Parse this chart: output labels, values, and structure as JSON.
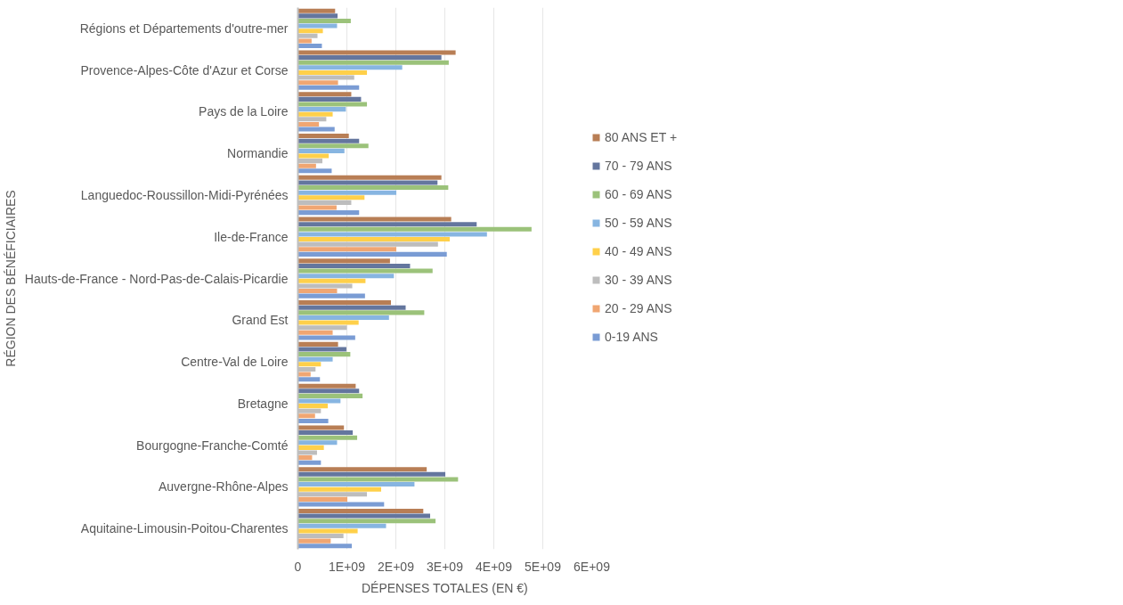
{
  "chart_data": {
    "type": "bar",
    "orientation": "horizontal",
    "xlabel": "DÉPENSES TOTALES (EN €)",
    "ylabel": "RÉGION DES BÉNÉFICIAIRES",
    "categories": [
      "Régions et Départements d'outre-mer",
      "Provence-Alpes-Côte d'Azur et Corse",
      "Pays de la Loire",
      "Normandie",
      "Languedoc-Roussillon-Midi-Pyrénées",
      "Ile-de-France",
      "Hauts-de-France - Nord-Pas-de-Calais-Picardie",
      "Grand Est",
      "Centre-Val de Loire",
      "Bretagne",
      "Bourgogne-Franche-Comté",
      "Auvergne-Rhône-Alpes",
      "Aquitaine-Limousin-Poitou-Charentes"
    ],
    "series": [
      {
        "name": "80 ANS ET +",
        "color": "#b87e55",
        "values": [
          760000000,
          3220000000,
          1090000000,
          1040000000,
          2930000000,
          3130000000,
          1880000000,
          1900000000,
          820000000,
          1180000000,
          940000000,
          2630000000,
          2560000000
        ]
      },
      {
        "name": "70 - 79 ANS",
        "color": "#64769e",
        "values": [
          810000000,
          2930000000,
          1290000000,
          1250000000,
          2850000000,
          3650000000,
          2290000000,
          2200000000,
          990000000,
          1250000000,
          1120000000,
          3010000000,
          2700000000
        ]
      },
      {
        "name": "60 - 69 ANS",
        "color": "#9bc27a",
        "values": [
          1080000000,
          3080000000,
          1410000000,
          1440000000,
          3070000000,
          4770000000,
          2750000000,
          2580000000,
          1070000000,
          1320000000,
          1210000000,
          3270000000,
          2810000000
        ]
      },
      {
        "name": "50 - 59 ANS",
        "color": "#87b5e1",
        "values": [
          800000000,
          2130000000,
          980000000,
          950000000,
          2010000000,
          3860000000,
          1960000000,
          1860000000,
          710000000,
          870000000,
          800000000,
          2380000000,
          1800000000
        ]
      },
      {
        "name": "40 - 49 ANS",
        "color": "#ffd04a",
        "values": [
          510000000,
          1410000000,
          710000000,
          630000000,
          1360000000,
          3100000000,
          1380000000,
          1240000000,
          470000000,
          610000000,
          530000000,
          1700000000,
          1220000000
        ]
      },
      {
        "name": "30 - 39 ANS",
        "color": "#bdbdbd",
        "values": [
          400000000,
          1150000000,
          580000000,
          500000000,
          1090000000,
          2860000000,
          1110000000,
          1000000000,
          360000000,
          470000000,
          390000000,
          1410000000,
          930000000
        ]
      },
      {
        "name": "20 - 29 ANS",
        "color": "#f0a672",
        "values": [
          280000000,
          820000000,
          430000000,
          370000000,
          790000000,
          2010000000,
          800000000,
          710000000,
          260000000,
          350000000,
          290000000,
          1010000000,
          670000000
        ]
      },
      {
        "name": "0-19 ANS",
        "color": "#7a9cd4",
        "values": [
          490000000,
          1250000000,
          750000000,
          690000000,
          1250000000,
          3040000000,
          1370000000,
          1170000000,
          450000000,
          620000000,
          470000000,
          1760000000,
          1100000000
        ]
      }
    ],
    "xlim": [
      0,
      6000000000
    ],
    "xticks": [
      0,
      {
        "value": 1000000000,
        "label": "1E+09"
      },
      {
        "value": 2000000000,
        "label": "2E+09"
      },
      {
        "value": 3000000000,
        "label": "3E+09"
      },
      {
        "value": 4000000000,
        "label": "4E+09"
      },
      {
        "value": 5000000000,
        "label": "5E+09"
      },
      {
        "value": 6000000000,
        "label": "6E+09"
      }
    ],
    "grid": "x",
    "legend": "right"
  }
}
